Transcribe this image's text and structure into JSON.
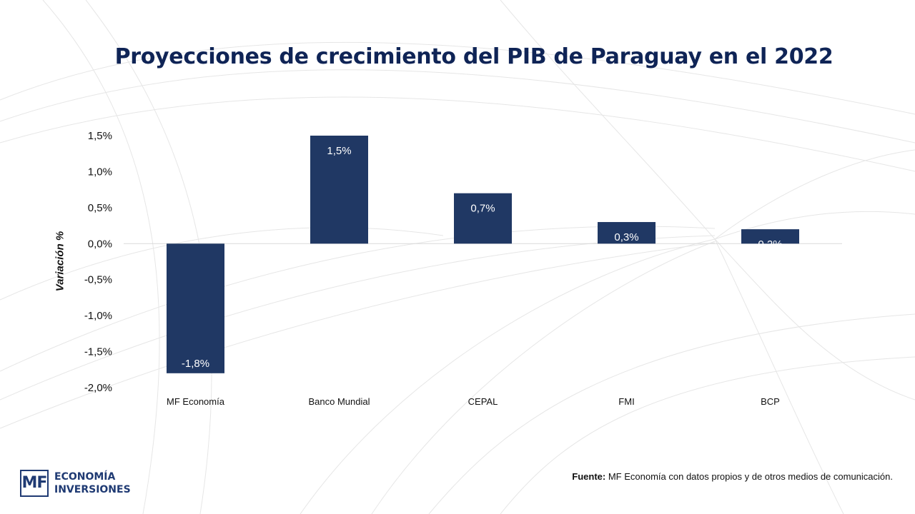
{
  "page": {
    "title": "Proyecciones de crecimiento del PIB de Paraguay en el 2022",
    "source_label": "Fuente:",
    "source_text": " MF Economía con datos propios y de otros medios de comunicación.",
    "logo": {
      "mark": "MF",
      "line1": "ECONOMÍA",
      "line2": "INVERSIONES"
    }
  },
  "colors": {
    "bar": "#203864",
    "title": "#0f2456",
    "bar_label": "#ffffff"
  },
  "chart_data": {
    "type": "bar",
    "title": "Proyecciones de crecimiento del PIB de Paraguay en el 2022",
    "xlabel": "",
    "ylabel": "Variación %",
    "categories": [
      "MF Economía",
      "Banco Mundial",
      "CEPAL",
      "FMI",
      "BCP"
    ],
    "values": [
      -1.8,
      1.5,
      0.7,
      0.3,
      0.2
    ],
    "data_labels": [
      "-1,8%",
      "1,5%",
      "0,7%",
      "0,3%",
      "0,2%"
    ],
    "yticks": [
      1.5,
      1.0,
      0.5,
      0.0,
      -0.5,
      -1.0,
      -1.5,
      -2.0
    ],
    "ytick_labels": [
      "1,5%",
      "1,0%",
      "0,5%",
      "0,0%",
      "-0,5%",
      "-1,0%",
      "-1,5%",
      "-2,0%"
    ],
    "ylim": [
      -2.0,
      1.5
    ],
    "grid": false,
    "legend": "none"
  }
}
